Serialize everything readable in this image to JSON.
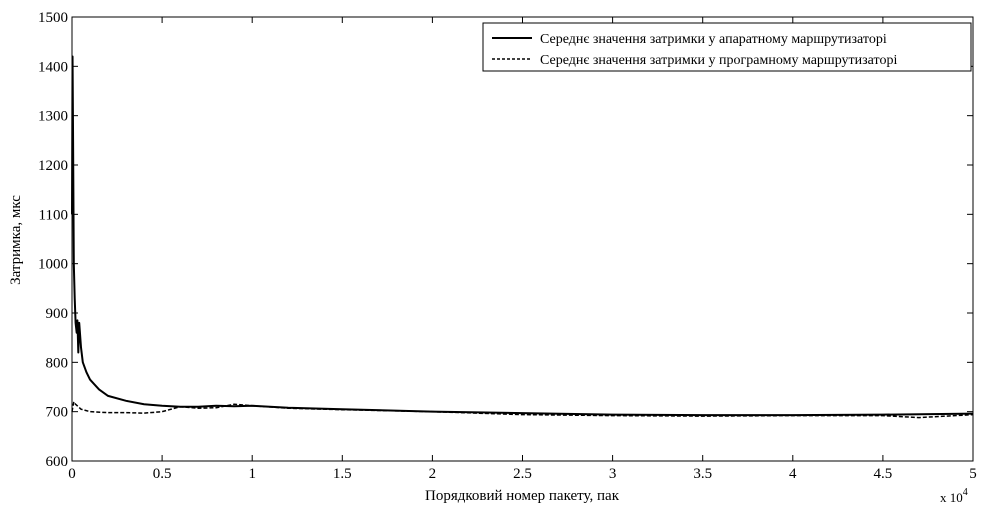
{
  "chart_data": {
    "type": "line",
    "xlabel": "Порядковий номер пакету, пак",
    "ylabel": "Затримка, мкс",
    "x_multiplier_label": "x 10",
    "x_multiplier_exponent": "4",
    "xlim": [
      0,
      50000
    ],
    "ylim": [
      600,
      1500
    ],
    "x_ticks": [
      0,
      5000,
      10000,
      15000,
      20000,
      25000,
      30000,
      35000,
      40000,
      45000,
      50000
    ],
    "x_tick_labels": [
      "0",
      "0.5",
      "1",
      "1.5",
      "2",
      "2.5",
      "3",
      "3.5",
      "4",
      "4.5",
      "5"
    ],
    "y_ticks": [
      600,
      700,
      800,
      900,
      1000,
      1100,
      1200,
      1300,
      1400,
      1500
    ],
    "y_tick_labels": [
      "600",
      "700",
      "800",
      "900",
      "1000",
      "1100",
      "1200",
      "1300",
      "1400",
      "1500"
    ],
    "grid": false,
    "legend_position": "top-right",
    "series": [
      {
        "name": "Середнє значення затримки у апаратному маршрутизаторі",
        "style": "solid",
        "color": "#000000",
        "x": [
          0,
          30,
          60,
          100,
          150,
          200,
          260,
          300,
          350,
          400,
          500,
          600,
          800,
          1000,
          1500,
          2000,
          3000,
          4000,
          5000,
          6000,
          7000,
          8000,
          9000,
          10000,
          12000,
          15000,
          20000,
          25000,
          30000,
          35000,
          40000,
          45000,
          50000
        ],
        "values": [
          1100,
          1420,
          1250,
          1000,
          930,
          880,
          860,
          885,
          820,
          880,
          830,
          800,
          780,
          765,
          745,
          732,
          722,
          715,
          712,
          710,
          710,
          712,
          711,
          712,
          708,
          705,
          700,
          697,
          694,
          693,
          693,
          694,
          696
        ]
      },
      {
        "name": "Середнє значення затримки у  програмному маршрутизаторі",
        "style": "dashed",
        "color": "#000000",
        "x": [
          0,
          100,
          200,
          500,
          1000,
          2000,
          3000,
          4000,
          5000,
          6000,
          7000,
          8000,
          9000,
          10000,
          12000,
          15000,
          20000,
          25000,
          30000,
          35000,
          40000,
          45000,
          47000,
          50000
        ],
        "values": [
          700,
          720,
          715,
          705,
          700,
          698,
          698,
          697,
          700,
          710,
          707,
          708,
          715,
          712,
          707,
          704,
          700,
          694,
          692,
          691,
          692,
          692,
          688,
          694
        ]
      }
    ]
  }
}
